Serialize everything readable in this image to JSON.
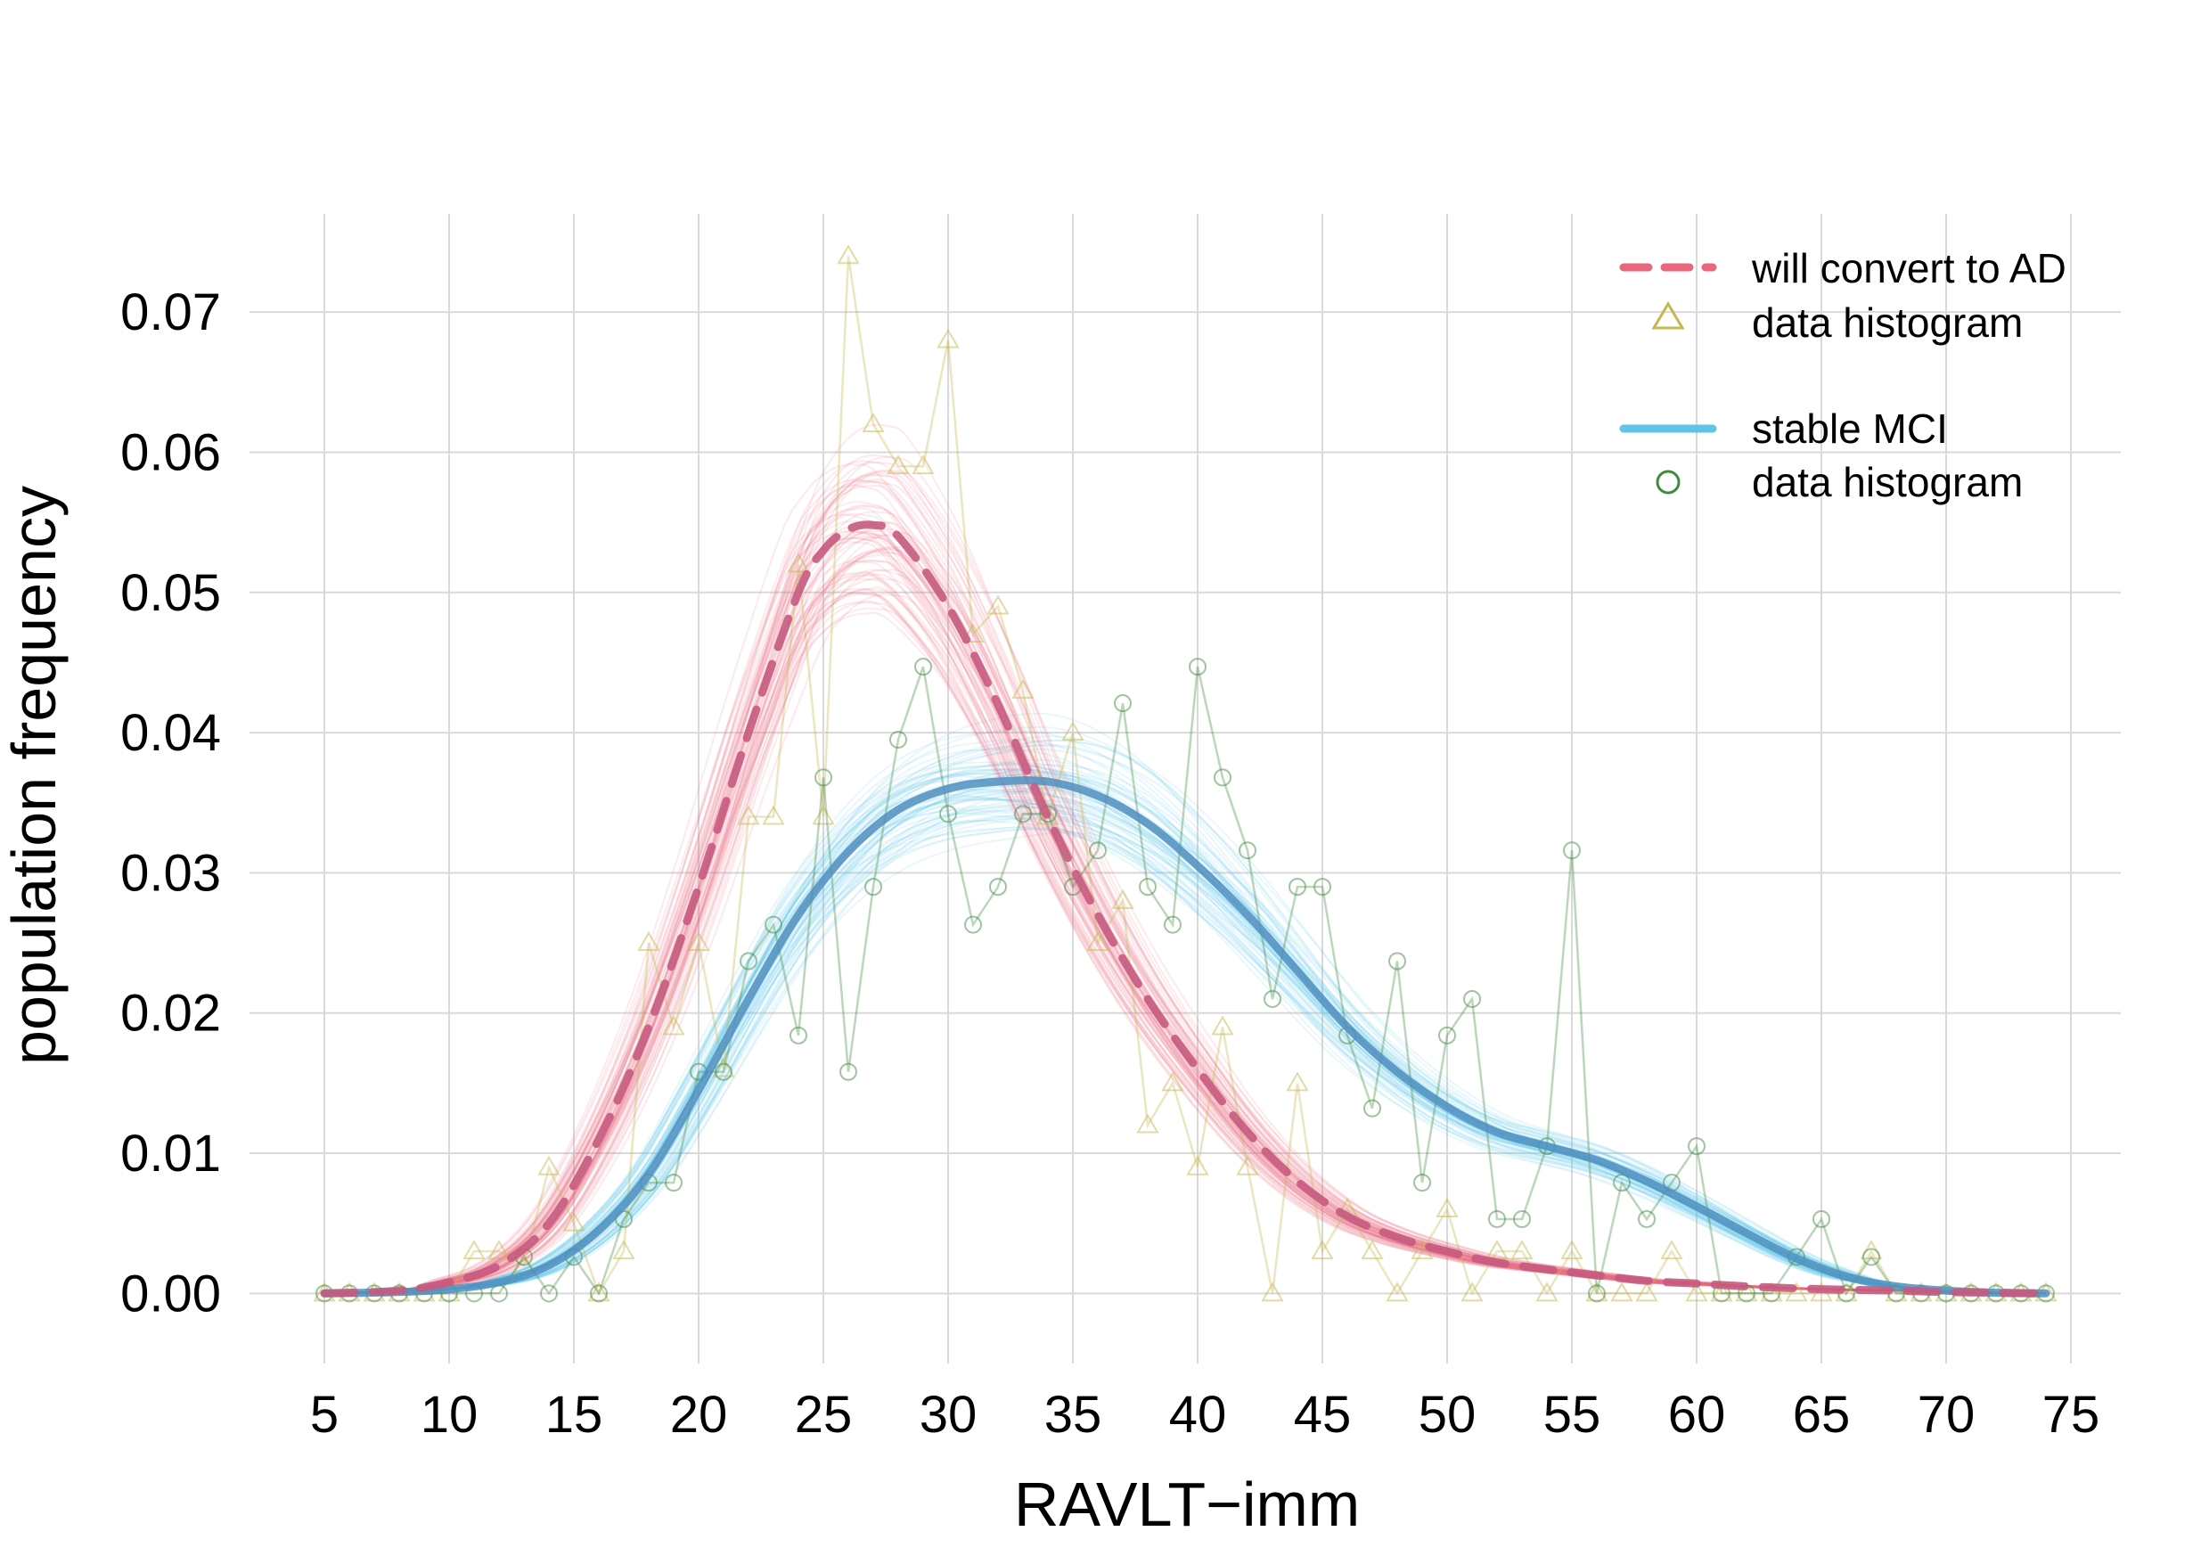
{
  "chart_data": {
    "type": "line",
    "title": "",
    "xlabel": "RAVLT−imm",
    "ylabel": "population frequency",
    "xlim": [
      2,
      77
    ],
    "ylim": [
      -0.005,
      0.077
    ],
    "x_ticks": [
      "5",
      "10",
      "15",
      "20",
      "25",
      "30",
      "35",
      "40",
      "45",
      "50",
      "55",
      "60",
      "65",
      "70",
      "75"
    ],
    "y_ticks": [
      "0.00",
      "0.01",
      "0.02",
      "0.03",
      "0.04",
      "0.05",
      "0.06",
      "0.07"
    ],
    "grid": true,
    "legend_position": "top-right",
    "series": [
      {
        "name": "will convert to AD",
        "style": "dashed",
        "color": "#e8677c",
        "x": [
          5,
          8,
          10,
          12,
          14,
          16,
          18,
          20,
          22,
          24,
          25,
          26,
          27,
          28,
          30,
          32,
          34,
          36,
          38,
          40,
          42,
          44,
          46,
          48,
          50,
          52,
          55,
          58,
          60,
          62,
          65,
          68,
          70,
          72,
          74
        ],
        "y": [
          0.0,
          0.0002,
          0.0008,
          0.002,
          0.005,
          0.011,
          0.019,
          0.029,
          0.04,
          0.05,
          0.053,
          0.0545,
          0.0548,
          0.054,
          0.049,
          0.042,
          0.034,
          0.027,
          0.021,
          0.016,
          0.0115,
          0.008,
          0.0055,
          0.004,
          0.003,
          0.0022,
          0.0015,
          0.0009,
          0.0007,
          0.0005,
          0.0003,
          0.0002,
          0.0001,
          5e-05,
          0.0
        ]
      },
      {
        "name": "data histogram",
        "marker": "triangle",
        "color": "#c6b84e",
        "x": [
          5,
          6,
          7,
          8,
          9,
          10,
          11,
          12,
          13,
          14,
          15,
          16,
          17,
          18,
          19,
          20,
          21,
          22,
          23,
          24,
          25,
          26,
          27,
          28,
          29,
          30,
          31,
          32,
          33,
          34,
          35,
          36,
          37,
          38,
          39,
          40,
          41,
          42,
          43,
          44,
          45,
          46,
          47,
          48,
          49,
          50,
          51,
          52,
          53,
          54,
          55,
          56,
          57,
          58,
          59,
          60,
          61,
          62,
          63,
          64,
          65,
          66,
          67,
          68,
          69,
          70,
          71,
          72,
          73,
          74
        ],
        "y": [
          0,
          0,
          0,
          0,
          0,
          0,
          0.003,
          0.003,
          0.002,
          0.009,
          0.005,
          0.0,
          0.003,
          0.025,
          0.019,
          0.025,
          0.016,
          0.034,
          0.034,
          0.052,
          0.034,
          0.074,
          0.062,
          0.059,
          0.059,
          0.068,
          0.047,
          0.049,
          0.043,
          0.034,
          0.04,
          0.025,
          0.028,
          0.012,
          0.015,
          0.009,
          0.019,
          0.009,
          0.0,
          0.015,
          0.003,
          0.006,
          0.003,
          0.0,
          0.003,
          0.006,
          0.0,
          0.003,
          0.003,
          0.0,
          0.003,
          0.0,
          0.0,
          0.0,
          0.003,
          0.0,
          0.0,
          0.0,
          0.0,
          0.0,
          0.0,
          0.0,
          0.003,
          0.0,
          0.0,
          0.0,
          0.0,
          0.0,
          0.0,
          0.0
        ]
      },
      {
        "name": "stable MCI",
        "style": "solid",
        "color": "#5fc4e8",
        "x": [
          5,
          8,
          10,
          12,
          14,
          16,
          18,
          20,
          22,
          24,
          26,
          28,
          30,
          32,
          34,
          36,
          38,
          40,
          42,
          44,
          46,
          48,
          50,
          52,
          54,
          56,
          58,
          60,
          62,
          64,
          66,
          68,
          70,
          72,
          74
        ],
        "y": [
          0.0,
          0.0001,
          0.0003,
          0.0008,
          0.002,
          0.0045,
          0.0085,
          0.0145,
          0.021,
          0.027,
          0.0315,
          0.0345,
          0.036,
          0.0365,
          0.0365,
          0.0355,
          0.0335,
          0.0305,
          0.027,
          0.023,
          0.019,
          0.0158,
          0.0133,
          0.0115,
          0.0105,
          0.0095,
          0.008,
          0.0062,
          0.0043,
          0.0025,
          0.0012,
          0.0005,
          0.0002,
          5e-05,
          0.0
        ]
      },
      {
        "name": "data histogram",
        "marker": "circle",
        "color": "#3f8a3f",
        "x": [
          5,
          6,
          7,
          8,
          9,
          10,
          11,
          12,
          13,
          14,
          15,
          16,
          17,
          18,
          19,
          20,
          21,
          22,
          23,
          24,
          25,
          26,
          27,
          28,
          29,
          30,
          31,
          32,
          33,
          34,
          35,
          36,
          37,
          38,
          39,
          40,
          41,
          42,
          43,
          44,
          45,
          46,
          47,
          48,
          49,
          50,
          51,
          52,
          53,
          54,
          55,
          56,
          57,
          58,
          59,
          60,
          61,
          62,
          63,
          64,
          65,
          66,
          67,
          68,
          69,
          70,
          71,
          72,
          73,
          74
        ],
        "y": [
          0,
          0,
          0,
          0,
          0,
          0,
          0,
          0,
          0.0026,
          0.0,
          0.0026,
          0.0,
          0.0053,
          0.0079,
          0.0079,
          0.0158,
          0.0158,
          0.0237,
          0.0263,
          0.0184,
          0.0368,
          0.0158,
          0.029,
          0.0395,
          0.0447,
          0.0342,
          0.0263,
          0.029,
          0.0342,
          0.0342,
          0.029,
          0.0316,
          0.0421,
          0.029,
          0.0263,
          0.0447,
          0.0368,
          0.0316,
          0.021,
          0.029,
          0.029,
          0.0184,
          0.0132,
          0.0237,
          0.0079,
          0.0184,
          0.021,
          0.0053,
          0.0053,
          0.0105,
          0.0316,
          0.0,
          0.0079,
          0.0053,
          0.0079,
          0.0105,
          0.0,
          0.0,
          0.0,
          0.0026,
          0.0053,
          0.0,
          0.0026,
          0.0,
          0.0,
          0.0,
          0.0,
          0.0,
          0.0,
          0.0
        ]
      }
    ]
  },
  "legend": {
    "entries": [
      {
        "label": "will convert to AD",
        "symbol": "dashed-line",
        "color": "#e8677c"
      },
      {
        "label": "data histogram",
        "symbol": "triangle",
        "color": "#c6b84e"
      },
      {
        "label": "stable MCI",
        "symbol": "solid-line",
        "color": "#5fc4e8"
      },
      {
        "label": "data histogram",
        "symbol": "circle",
        "color": "#3f8a3f"
      }
    ]
  }
}
